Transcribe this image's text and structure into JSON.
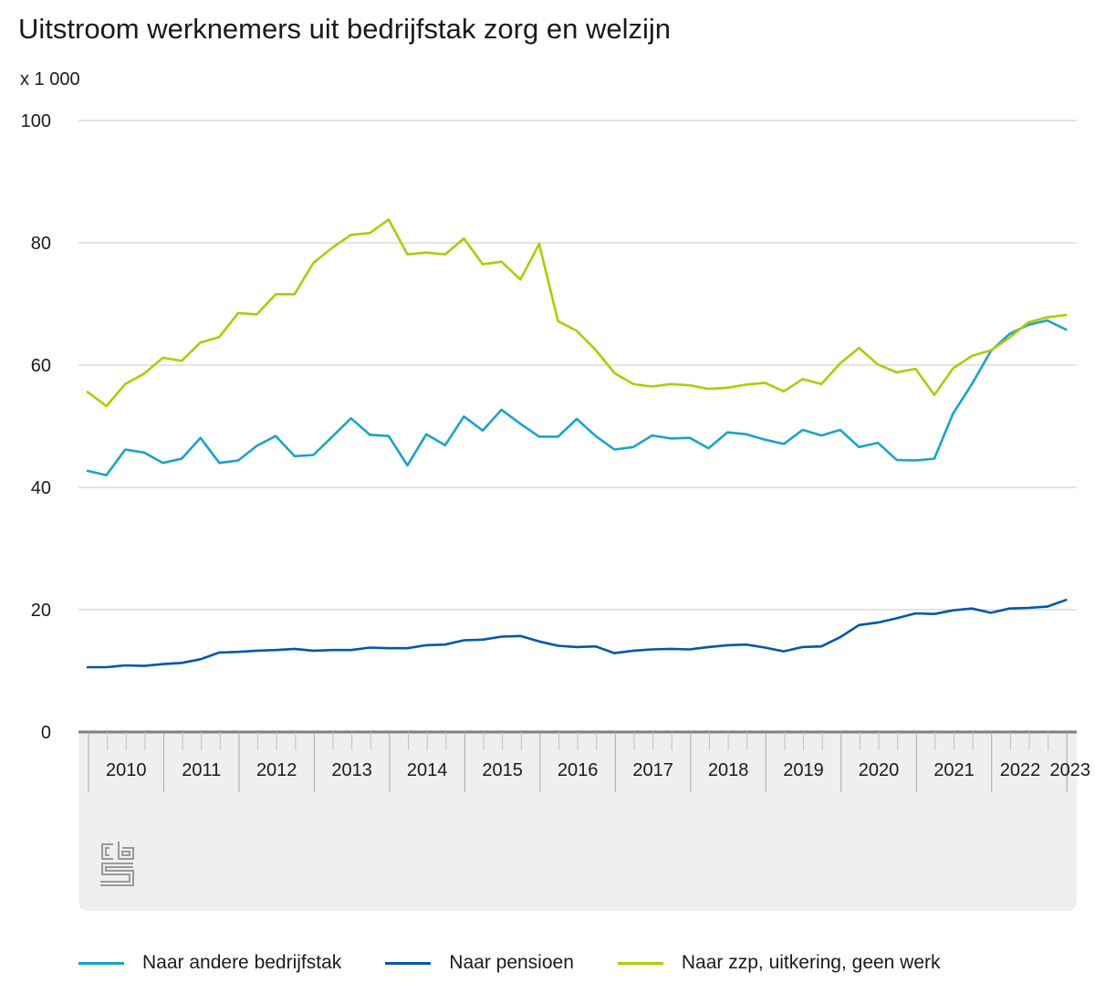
{
  "chart_data": {
    "type": "line",
    "title": "Uitstroom werknemers uit bedrijfstak zorg en welzijn",
    "unit_label": "x 1 000",
    "ylim": [
      0,
      100
    ],
    "yticks": [
      0,
      20,
      40,
      60,
      80,
      100
    ],
    "year_labels": [
      "2010",
      "2011",
      "2012",
      "2013",
      "2014",
      "2015",
      "2016",
      "2017",
      "2018",
      "2019",
      "2020",
      "2021",
      "2022",
      "2023"
    ],
    "x_start": "2010 Q1",
    "grid": true,
    "legend_position": "bottom",
    "series": [
      {
        "name": "Naar andere bedrijfstak",
        "color": "#1aa3c8",
        "values": [
          42.7,
          42.0,
          46.2,
          45.7,
          44.0,
          44.7,
          48.1,
          44.0,
          44.4,
          46.8,
          48.4,
          45.1,
          45.3,
          48.3,
          51.3,
          48.6,
          48.4,
          43.6,
          48.7,
          46.9,
          51.6,
          49.3,
          52.7,
          50.4,
          48.3,
          48.3,
          51.2,
          48.4,
          46.2,
          46.6,
          48.5,
          48.0,
          48.1,
          46.4,
          49.0,
          48.7,
          47.8,
          47.1,
          49.4,
          48.5,
          49.4,
          46.6,
          47.3,
          44.5,
          44.4,
          44.7,
          52.1,
          56.9,
          62.3,
          65.1,
          66.6,
          67.3,
          65.8
        ]
      },
      {
        "name": "Naar pensioen",
        "color": "#0058a8",
        "values": [
          10.6,
          10.6,
          10.9,
          10.8,
          11.1,
          11.3,
          11.9,
          13.0,
          13.1,
          13.3,
          13.4,
          13.6,
          13.3,
          13.4,
          13.4,
          13.8,
          13.7,
          13.7,
          14.2,
          14.3,
          15.0,
          15.1,
          15.6,
          15.7,
          14.8,
          14.1,
          13.9,
          14.0,
          12.9,
          13.3,
          13.5,
          13.6,
          13.5,
          13.9,
          14.2,
          14.3,
          13.8,
          13.2,
          13.9,
          14.0,
          15.5,
          17.5,
          17.9,
          18.6,
          19.4,
          19.3,
          19.9,
          20.2,
          19.5,
          20.2,
          20.3,
          20.5,
          21.6
        ]
      },
      {
        "name": "Naar zzp, uitkering, geen werk",
        "color": "#afcb05",
        "values": [
          55.6,
          53.3,
          56.9,
          58.6,
          61.2,
          60.7,
          63.7,
          64.6,
          68.5,
          68.3,
          71.6,
          71.6,
          76.7,
          79.2,
          81.3,
          81.6,
          83.8,
          78.1,
          78.4,
          78.1,
          80.7,
          76.5,
          76.9,
          74.0,
          79.8,
          67.2,
          65.6,
          62.5,
          58.7,
          56.9,
          56.5,
          56.9,
          56.7,
          56.1,
          56.3,
          56.8,
          57.1,
          55.7,
          57.7,
          56.9,
          60.3,
          62.8,
          60.1,
          58.8,
          59.4,
          55.1,
          59.5,
          61.5,
          62.4,
          64.5,
          67.0,
          67.8,
          68.2
        ]
      }
    ]
  },
  "logo": {
    "name": "cbs-logo",
    "text": "cbs"
  }
}
